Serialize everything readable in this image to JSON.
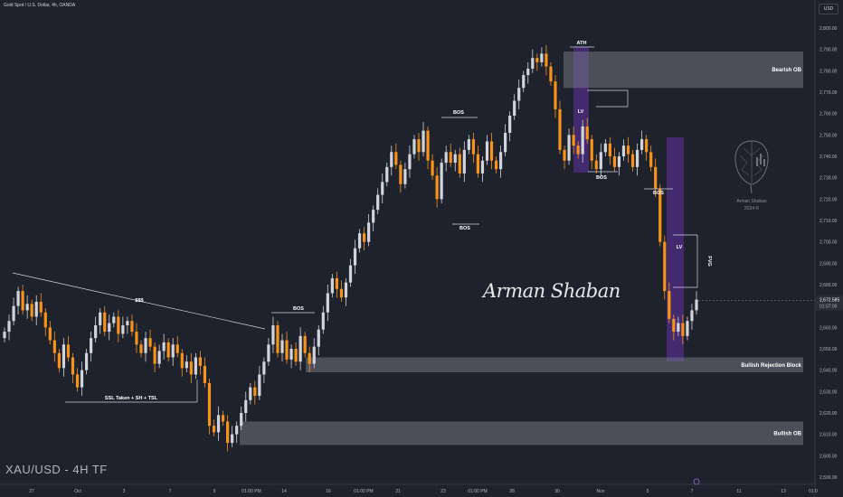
{
  "header": {
    "symbol_line": "Gold Spot / U.S. Dollar, 4h, OANDA",
    "currency": "USD"
  },
  "watermark": {
    "title": "XAU/USD - 4H TF",
    "signature": "Arman Shaban",
    "logo_line1": "Arman Shaban",
    "logo_line2": "2024 ©"
  },
  "colors": {
    "background": "#1e222d",
    "bull": "#d1d4dc",
    "bear": "#f7931a",
    "zone": "#787b86",
    "purple": "#4a2a7a"
  },
  "chart_data": {
    "type": "candlestick",
    "symbol": "XAU/USD",
    "timeframe": "4H",
    "ylim": [
      2590,
      2800
    ],
    "y_ticks": [
      "2,800.00",
      "2,790.00",
      "2,780.00",
      "2,770.00",
      "2,760.00",
      "2,750.00",
      "2,740.00",
      "2,730.00",
      "2,720.00",
      "2,710.00",
      "2,700.00",
      "2,690.00",
      "2,680.00",
      "2,670.00",
      "2,660.00",
      "2,650.00",
      "2,640.00",
      "2,630.00",
      "2,620.00",
      "2,610.00",
      "2,600.00",
      "2,590.00"
    ],
    "x_ticks": [
      "27",
      "Oct",
      "3",
      "7",
      "9",
      "01:00 PM",
      "14",
      "16",
      "01:00 PM",
      "21",
      "23",
      "01:00 PM",
      "28",
      "30",
      "Nov",
      "5",
      "7",
      "11",
      "13",
      "01:0"
    ],
    "current_price": "2,672.585",
    "countdown": "01:07:00",
    "closes": [
      2658,
      2663,
      2670,
      2677,
      2668,
      2671,
      2665,
      2672,
      2667,
      2660,
      2654,
      2648,
      2641,
      2652,
      2646,
      2638,
      2632,
      2640,
      2648,
      2655,
      2661,
      2667,
      2658,
      2662,
      2665,
      2657,
      2661,
      2663,
      2658,
      2652,
      2648,
      2655,
      2651,
      2643,
      2649,
      2653,
      2646,
      2652,
      2648,
      2641,
      2644,
      2638,
      2646,
      2642,
      2634,
      2614,
      2611,
      2619,
      2616,
      2606,
      2610,
      2614,
      2620,
      2626,
      2632,
      2628,
      2638,
      2644,
      2652,
      2661,
      2648,
      2654,
      2645,
      2650,
      2644,
      2656,
      2648,
      2643,
      2651,
      2659,
      2667,
      2676,
      2683,
      2678,
      2674,
      2681,
      2689,
      2697,
      2704,
      2700,
      2709,
      2715,
      2722,
      2728,
      2735,
      2742,
      2736,
      2727,
      2734,
      2741,
      2748,
      2742,
      2752,
      2738,
      2731,
      2720,
      2737,
      2742,
      2737,
      2741,
      2732,
      2743,
      2748,
      2741,
      2732,
      2738,
      2747,
      2738,
      2734,
      2742,
      2751,
      2759,
      2766,
      2772,
      2778,
      2781,
      2786,
      2784,
      2788,
      2782,
      2775,
      2762,
      2743,
      2738,
      2750,
      2745,
      2741,
      2754,
      2748,
      2738,
      2734,
      2742,
      2746,
      2740,
      2735,
      2740,
      2745,
      2741,
      2735,
      2743,
      2748,
      2742,
      2735,
      2725,
      2700,
      2677,
      2664,
      2658,
      2662,
      2656,
      2663,
      2668,
      2673
    ],
    "annotations": [
      "$$$",
      "SSL Taken + SH + TSL",
      "BOS",
      "BOS",
      "BOS",
      "ATH",
      "LV",
      "BOS",
      "BOS",
      "LV",
      "FVG"
    ],
    "zones": [
      {
        "label": "Bearish OB",
        "from": 2772,
        "to": 2789
      },
      {
        "label": "Bullish Rejection Block",
        "from": 2639,
        "to": 2646
      },
      {
        "label": "Bullish OB",
        "from": 2605,
        "to": 2616
      }
    ]
  }
}
